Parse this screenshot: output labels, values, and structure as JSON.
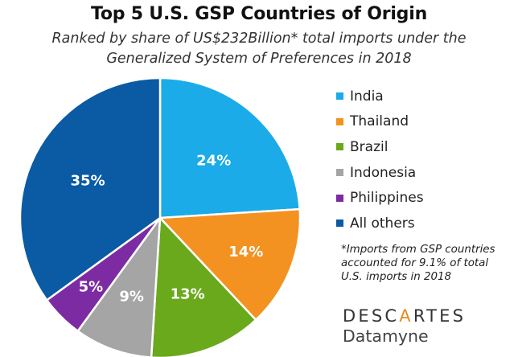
{
  "chart_data": {
    "type": "pie",
    "title": "Top 5 U.S. GSP Countries of Origin",
    "subtitle_lines": [
      "Ranked by share of US$232Billion* total imports under the",
      "Generalized System of Preferences in 2018"
    ],
    "slices": [
      {
        "label": "India",
        "value": 24,
        "display": "24%",
        "color": "#1aabe8"
      },
      {
        "label": "Thailand",
        "value": 14,
        "display": "14%",
        "color": "#f39221"
      },
      {
        "label": "Brazil",
        "value": 13,
        "display": "13%",
        "color": "#6aa91c"
      },
      {
        "label": "Indonesia",
        "value": 9,
        "display": "9%",
        "color": "#a5a5a5"
      },
      {
        "label": "Philippines",
        "value": 5,
        "display": "5%",
        "color": "#7d2ba2"
      },
      {
        "label": "All others",
        "value": 35,
        "display": "35%",
        "color": "#0a5aa4"
      }
    ],
    "legend_placement": "right",
    "footnote_lines": [
      "*Imports from GSP countries",
      "accounted for 9.1% of total",
      "U.S. imports in 2018"
    ]
  },
  "brand": {
    "top_left": "DESC",
    "top_mark": "A",
    "top_right": "RTES",
    "bottom": "Datamyne",
    "accent_color": "#e58a1f"
  }
}
